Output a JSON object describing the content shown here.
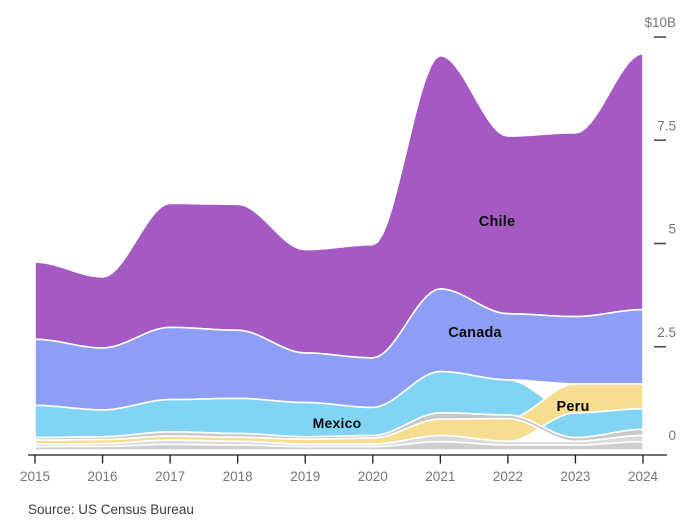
{
  "chart_data": {
    "type": "area",
    "subtype": "stacked-stream",
    "title": "",
    "unit": "$B",
    "x": [
      2015,
      2016,
      2017,
      2018,
      2019,
      2020,
      2021,
      2022,
      2023,
      2024
    ],
    "series": [
      {
        "name": "",
        "key": "others",
        "color": "#cecece",
        "values": [
          0.2,
          0.22,
          0.34,
          0.3,
          0.2,
          0.2,
          0.5,
          0.3,
          0.3,
          0.5
        ]
      },
      {
        "name": "Peru",
        "key": "peru",
        "color": "#f7dd90",
        "values": [
          0.1,
          0.1,
          0.1,
          0.1,
          0.12,
          0.15,
          0.4,
          0.55,
          0.7,
          0.6
        ]
      },
      {
        "name": "Mexico",
        "key": "mexico",
        "color": "#82d4f5",
        "values": [
          0.78,
          0.65,
          0.78,
          0.85,
          0.83,
          0.68,
          1.0,
          0.85,
          0.6,
          0.5
        ]
      },
      {
        "name": "Canada",
        "key": "canada",
        "color": "#8f9ef5",
        "values": [
          1.6,
          1.5,
          1.75,
          1.65,
          1.2,
          1.2,
          2.0,
          1.6,
          1.63,
          1.8
        ]
      },
      {
        "name": "Chile",
        "key": "chile",
        "color": "#a559c3",
        "values": [
          1.87,
          1.72,
          3.0,
          3.05,
          2.5,
          2.74,
          5.65,
          4.3,
          4.45,
          6.2
        ]
      }
    ],
    "rank_note": "Peru crosses above Mexico between 2022 and 2023",
    "ylim": [
      0,
      10
    ],
    "grid": false,
    "legend_position": "labels-inside-areas"
  },
  "x_axis": {
    "labels": [
      "2015",
      "2016",
      "2017",
      "2018",
      "2019",
      "2020",
      "2021",
      "2022",
      "2023",
      "2024"
    ]
  },
  "y_axis": {
    "labels": [
      "$10B",
      "7.5",
      "5",
      "2.5",
      "0"
    ],
    "values": [
      10,
      7.5,
      5,
      2.5,
      0
    ]
  },
  "colors": {
    "axis_line": "#1a1a1a",
    "tick_label": "#757575",
    "y_dash": "#4d4d4d",
    "background": "#ffffff",
    "others_gray_shades": [
      "#cecece",
      "#dadada",
      "#c8c8c8"
    ]
  },
  "source": {
    "text": "Source: US Census Bureau"
  }
}
